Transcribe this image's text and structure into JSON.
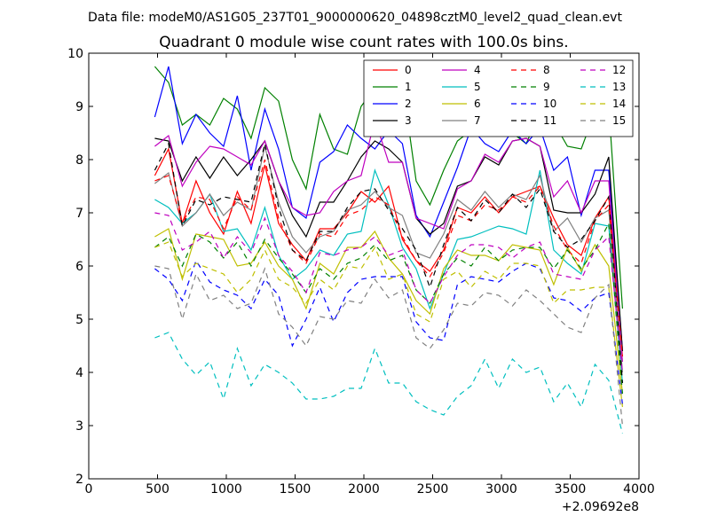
{
  "header": {
    "file_label": "Data file: modeM0/AS1G05_237T01_9000000620_04898cztM0_level2_quad_clean.evt"
  },
  "chart_data": {
    "type": "line",
    "title": "Quadrant 0 module wise count rates with 100.0s bins.",
    "xlabel": "",
    "ylabel": "",
    "x_offset_label": "+2.09692e8",
    "xlim": [
      0,
      4000
    ],
    "ylim": [
      2,
      10
    ],
    "x_ticks": [
      0,
      500,
      1000,
      1500,
      2000,
      2500,
      3000,
      3500,
      4000
    ],
    "y_ticks": [
      2,
      3,
      4,
      5,
      6,
      7,
      8,
      9,
      10
    ],
    "grid": false,
    "legend_position": "top-right",
    "x": [
      480,
      580,
      680,
      780,
      880,
      980,
      1080,
      1180,
      1280,
      1380,
      1480,
      1580,
      1680,
      1780,
      1880,
      1980,
      2080,
      2180,
      2280,
      2380,
      2480,
      2580,
      2680,
      2780,
      2880,
      2980,
      3080,
      3180,
      3280,
      3380,
      3480,
      3580,
      3680,
      3780,
      3880
    ],
    "series": [
      {
        "name": "0",
        "color": "#ff0000",
        "style": "solid",
        "values": [
          7.7,
          8.2,
          6.8,
          7.6,
          7.0,
          6.6,
          7.4,
          6.8,
          7.9,
          6.8,
          6.4,
          6.1,
          6.7,
          6.7,
          7.0,
          7.4,
          7.2,
          7.5,
          6.5,
          6.1,
          5.9,
          6.3,
          7.1,
          7.0,
          7.3,
          7.0,
          7.3,
          7.4,
          7.5,
          6.9,
          6.4,
          6.2,
          6.9,
          7.3,
          4.3
        ]
      },
      {
        "name": "1",
        "color": "#008000",
        "style": "solid",
        "values": [
          9.75,
          9.45,
          8.65,
          8.85,
          8.65,
          9.15,
          8.95,
          8.4,
          9.35,
          9.1,
          8.0,
          7.45,
          8.85,
          8.2,
          8.1,
          9.0,
          9.35,
          8.75,
          9.45,
          7.6,
          7.15,
          7.8,
          8.35,
          8.55,
          8.45,
          8.6,
          8.5,
          8.3,
          8.9,
          8.7,
          8.25,
          8.2,
          8.9,
          9.0,
          5.2
        ]
      },
      {
        "name": "2",
        "color": "#0000ff",
        "style": "solid",
        "values": [
          8.8,
          9.75,
          8.3,
          8.85,
          8.5,
          8.25,
          9.2,
          7.8,
          8.95,
          8.2,
          7.1,
          6.9,
          7.95,
          8.15,
          8.65,
          8.4,
          8.2,
          8.55,
          8.3,
          6.95,
          6.55,
          7.2,
          7.85,
          8.6,
          8.3,
          8.15,
          8.55,
          8.3,
          8.6,
          7.8,
          8.05,
          6.95,
          7.8,
          7.8,
          4.4
        ]
      },
      {
        "name": "3",
        "color": "#000000",
        "style": "solid",
        "values": [
          8.4,
          8.35,
          7.6,
          8.05,
          7.65,
          8.05,
          7.7,
          8.0,
          8.35,
          7.6,
          6.95,
          6.55,
          7.2,
          7.2,
          7.6,
          8.05,
          8.35,
          8.2,
          7.95,
          6.9,
          6.6,
          6.8,
          7.5,
          7.6,
          8.05,
          7.9,
          8.35,
          8.4,
          8.25,
          7.05,
          7.0,
          7.0,
          7.35,
          8.05,
          4.4
        ]
      },
      {
        "name": "4",
        "color": "#bf00bf",
        "style": "solid",
        "values": [
          8.25,
          8.45,
          7.5,
          7.95,
          8.25,
          8.2,
          8.05,
          7.9,
          8.35,
          7.6,
          7.1,
          6.95,
          7.0,
          7.4,
          7.6,
          7.7,
          8.75,
          7.95,
          7.95,
          6.9,
          6.8,
          6.7,
          7.45,
          7.6,
          8.1,
          7.95,
          8.35,
          8.4,
          8.25,
          7.3,
          7.6,
          7.0,
          7.6,
          7.6,
          4.2
        ]
      },
      {
        "name": "5",
        "color": "#00bfbf",
        "style": "solid",
        "values": [
          7.25,
          7.1,
          6.8,
          7.0,
          7.35,
          6.65,
          6.7,
          6.3,
          7.1,
          6.2,
          5.75,
          5.95,
          6.3,
          6.2,
          6.6,
          6.65,
          7.8,
          7.15,
          6.35,
          5.95,
          5.2,
          5.85,
          6.5,
          6.55,
          6.65,
          6.75,
          6.7,
          6.6,
          7.8,
          6.3,
          6.05,
          5.85,
          6.8,
          6.75,
          3.8
        ]
      },
      {
        "name": "6",
        "color": "#bfbf00",
        "style": "solid",
        "values": [
          6.55,
          6.7,
          5.75,
          6.6,
          6.55,
          6.5,
          6.0,
          6.05,
          6.45,
          6.0,
          5.75,
          5.2,
          6.05,
          5.85,
          6.35,
          6.35,
          6.65,
          6.15,
          5.85,
          5.35,
          5.1,
          5.95,
          6.3,
          6.2,
          6.2,
          6.1,
          6.4,
          6.35,
          6.3,
          5.65,
          6.35,
          5.9,
          6.4,
          6.0,
          3.6
        ]
      },
      {
        "name": "7",
        "color": "#808080",
        "style": "solid",
        "values": [
          7.55,
          7.75,
          6.75,
          7.0,
          7.35,
          6.95,
          7.2,
          7.05,
          8.25,
          7.2,
          6.55,
          6.25,
          6.55,
          6.65,
          7.05,
          7.15,
          7.4,
          7.1,
          6.95,
          6.25,
          6.15,
          6.6,
          7.25,
          7.05,
          7.4,
          7.1,
          7.35,
          7.25,
          7.7,
          6.65,
          6.9,
          6.45,
          6.9,
          7.05,
          4.0
        ]
      },
      {
        "name": "8",
        "color": "#ff0000",
        "style": "dashed",
        "values": [
          7.6,
          7.7,
          6.8,
          7.3,
          7.25,
          6.7,
          7.3,
          7.05,
          8.0,
          6.9,
          6.3,
          6.05,
          6.6,
          6.55,
          6.95,
          7.05,
          7.3,
          7.15,
          6.55,
          6.1,
          5.8,
          6.25,
          6.95,
          6.85,
          7.15,
          7.05,
          7.3,
          7.2,
          7.5,
          6.75,
          6.3,
          6.05,
          6.85,
          7.15,
          4.3
        ]
      },
      {
        "name": "9",
        "color": "#008000",
        "style": "dashed",
        "values": [
          6.35,
          6.55,
          6.0,
          6.6,
          6.45,
          6.15,
          6.45,
          6.0,
          6.5,
          6.15,
          5.85,
          5.5,
          5.95,
          5.75,
          6.05,
          6.15,
          6.4,
          6.1,
          6.2,
          5.55,
          5.3,
          5.85,
          6.15,
          6.0,
          6.35,
          6.1,
          6.3,
          6.35,
          6.35,
          5.95,
          6.3,
          5.95,
          6.3,
          6.8,
          3.6
        ]
      },
      {
        "name": "10",
        "color": "#0000ff",
        "style": "dashed",
        "values": [
          5.95,
          5.75,
          5.35,
          6.1,
          5.7,
          5.55,
          5.45,
          5.2,
          5.75,
          5.45,
          4.5,
          5.0,
          5.6,
          4.95,
          5.5,
          5.75,
          5.8,
          5.8,
          5.8,
          4.95,
          4.65,
          4.6,
          5.65,
          5.8,
          5.75,
          5.7,
          5.9,
          6.05,
          5.95,
          5.4,
          5.35,
          5.15,
          5.4,
          5.5,
          3.4
        ]
      },
      {
        "name": "11",
        "color": "#000000",
        "style": "dashed",
        "values": [
          7.8,
          8.3,
          6.75,
          7.25,
          7.15,
          7.3,
          7.25,
          7.2,
          8.3,
          7.1,
          6.3,
          6.1,
          6.65,
          6.65,
          7.1,
          7.4,
          7.45,
          7.05,
          6.7,
          6.3,
          5.6,
          6.4,
          7.1,
          6.85,
          7.25,
          7.0,
          7.35,
          7.1,
          7.45,
          6.65,
          6.35,
          6.5,
          6.85,
          7.3,
          3.8
        ]
      },
      {
        "name": "12",
        "color": "#bf00bf",
        "style": "dashed",
        "values": [
          7.0,
          6.95,
          6.3,
          6.45,
          6.65,
          6.15,
          6.55,
          6.25,
          6.9,
          6.2,
          5.9,
          5.5,
          6.25,
          6.2,
          6.3,
          6.35,
          6.55,
          6.2,
          6.3,
          5.55,
          5.3,
          5.8,
          6.2,
          6.4,
          6.4,
          6.35,
          6.15,
          6.35,
          6.45,
          5.85,
          5.8,
          5.75,
          6.3,
          6.55,
          4.0
        ]
      },
      {
        "name": "13",
        "color": "#00bfbf",
        "style": "dashed",
        "values": [
          4.65,
          4.75,
          4.25,
          3.95,
          4.2,
          3.5,
          4.45,
          3.75,
          4.15,
          4.0,
          3.8,
          3.5,
          3.5,
          3.55,
          3.7,
          3.7,
          4.45,
          3.8,
          3.8,
          3.45,
          3.3,
          3.2,
          3.55,
          3.75,
          4.25,
          3.7,
          4.25,
          4.0,
          4.1,
          3.45,
          3.8,
          3.35,
          4.15,
          3.85,
          2.85
        ]
      },
      {
        "name": "14",
        "color": "#bfbf00",
        "style": "dashed",
        "values": [
          6.35,
          6.45,
          5.8,
          6.05,
          5.95,
          5.85,
          5.5,
          5.75,
          6.3,
          5.75,
          5.6,
          5.3,
          5.75,
          5.55,
          6.0,
          5.95,
          6.35,
          5.75,
          5.85,
          5.1,
          4.95,
          5.75,
          5.9,
          5.6,
          5.9,
          5.75,
          6.05,
          6.05,
          6.0,
          5.3,
          5.55,
          5.55,
          5.6,
          5.6,
          3.35
        ]
      },
      {
        "name": "15",
        "color": "#808080",
        "style": "dashed",
        "values": [
          6.0,
          5.95,
          5.0,
          5.85,
          5.35,
          5.45,
          5.2,
          5.3,
          5.95,
          5.1,
          4.85,
          4.5,
          5.05,
          5.0,
          5.35,
          5.3,
          5.75,
          5.4,
          5.55,
          4.65,
          4.45,
          4.8,
          5.3,
          5.25,
          5.5,
          5.45,
          5.25,
          5.55,
          5.35,
          5.1,
          4.85,
          4.75,
          5.4,
          5.65,
          3.0
        ]
      }
    ]
  }
}
